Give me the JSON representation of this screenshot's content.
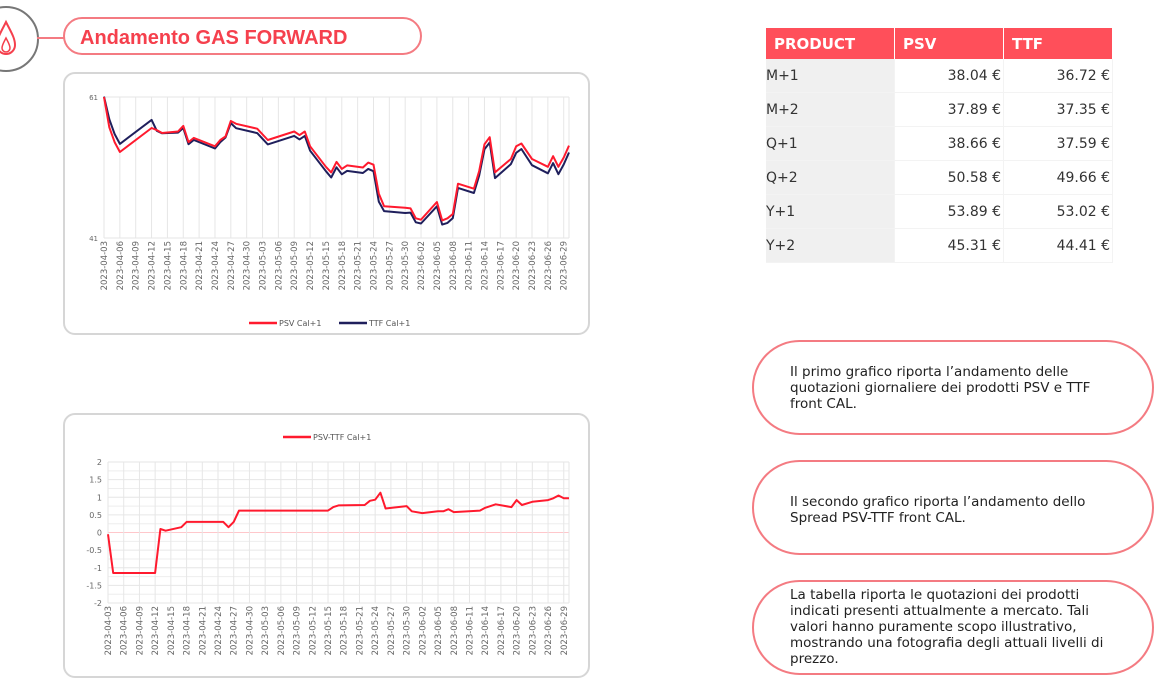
{
  "header": {
    "title": "Andamento GAS FORWARD",
    "icon": "gas-flame-icon"
  },
  "colors": {
    "accent": "#f5404d",
    "psv": "#ff1a2e",
    "ttf": "#1f1f5c",
    "table_header": "#ff4f5a"
  },
  "table": {
    "headers": [
      "PRODUCT",
      "PSV",
      "TTF"
    ],
    "rows": [
      [
        "M+1",
        "38.04 €",
        "36.72 €"
      ],
      [
        "M+2",
        "37.89 €",
        "37.35 €"
      ],
      [
        "Q+1",
        "38.66 €",
        "37.59 €"
      ],
      [
        "Q+2",
        "50.58 €",
        "49.66 €"
      ],
      [
        "Y+1",
        "53.89 €",
        "53.02 €"
      ],
      [
        "Y+2",
        "45.31 €",
        "44.41 €"
      ]
    ]
  },
  "notes": [
    "Il primo grafico riporta l’andamento delle quotazioni giornaliere dei prodotti PSV e TTF front CAL.",
    "Il secondo grafico riporta l’andamento dello Spread PSV-TTF front CAL.",
    "La tabella riporta le quotazioni dei prodotti indicati presenti attualmente a mercato. Tali valori hanno puramente scopo illustrativo, mostrando una fotografia degli attuali livelli di prezzo."
  ],
  "chart_data": [
    {
      "type": "line",
      "ylim": [
        41,
        61
      ],
      "yticks": [
        "41",
        "61"
      ],
      "xticks": [
        "2023-04-03",
        "2023-04-06",
        "2023-04-09",
        "2023-04-12",
        "2023-04-15",
        "2023-04-18",
        "2023-04-21",
        "2023-04-24",
        "2023-04-27",
        "2023-04-30",
        "2023-05-03",
        "2023-05-06",
        "2023-05-09",
        "2023-05-12",
        "2023-05-15",
        "2023-05-18",
        "2023-05-21",
        "2023-05-24",
        "2023-05-27",
        "2023-05-30",
        "2023-06-02",
        "2023-06-05",
        "2023-06-08",
        "2023-06-11",
        "2023-06-14",
        "2023-06-17",
        "2023-06-20",
        "2023-06-23",
        "2023-06-26",
        "2023-06-29"
      ],
      "grid": true,
      "legend": "bottom",
      "x": [
        "2023-04-03",
        "2023-04-04",
        "2023-04-05",
        "2023-04-06",
        "2023-04-12",
        "2023-04-13",
        "2023-04-14",
        "2023-04-17",
        "2023-04-18",
        "2023-04-19",
        "2023-04-20",
        "2023-04-24",
        "2023-04-25",
        "2023-04-26",
        "2023-04-27",
        "2023-04-28",
        "2023-05-02",
        "2023-05-04",
        "2023-05-09",
        "2023-05-10",
        "2023-05-11",
        "2023-05-12",
        "2023-05-15",
        "2023-05-16",
        "2023-05-17",
        "2023-05-18",
        "2023-05-19",
        "2023-05-22",
        "2023-05-23",
        "2023-05-24",
        "2023-05-25",
        "2023-05-26",
        "2023-05-30",
        "2023-05-31",
        "2023-06-01",
        "2023-06-02",
        "2023-06-05",
        "2023-06-06",
        "2023-06-07",
        "2023-06-08",
        "2023-06-09",
        "2023-06-12",
        "2023-06-13",
        "2023-06-14",
        "2023-06-15",
        "2023-06-16",
        "2023-06-19",
        "2023-06-20",
        "2023-06-21",
        "2023-06-23",
        "2023-06-26",
        "2023-06-27",
        "2023-06-28",
        "2023-06-29",
        "2023-06-30"
      ],
      "series": [
        {
          "name": "PSV Cal+1",
          "color": "#ff1a2e",
          "values": [
            61,
            56.7,
            54.6,
            53.2,
            56.6,
            56.3,
            55.9,
            56.1,
            56.9,
            54.6,
            55.2,
            54.0,
            54.9,
            55.4,
            57.6,
            57.2,
            56.5,
            54.9,
            56.1,
            55.6,
            56.1,
            54.0,
            51.1,
            50.3,
            51.8,
            50.8,
            51.3,
            51.0,
            51.7,
            51.4,
            47.3,
            45.5,
            45.3,
            45.2,
            43.8,
            43.6,
            46.1,
            43.5,
            43.8,
            44.4,
            48.7,
            48.0,
            50.5,
            54.3,
            55.3,
            50.3,
            52.2,
            54.0,
            54.4,
            52.2,
            51.1,
            52.6,
            51.1,
            52.4,
            54.1
          ]
        },
        {
          "name": "TTF Cal+1",
          "color": "#1f1f5c",
          "values": [
            61.05,
            57.85,
            55.75,
            54.35,
            57.75,
            56.2,
            55.85,
            55.95,
            56.6,
            54.3,
            54.9,
            53.7,
            54.6,
            55.25,
            57.3,
            56.58,
            55.88,
            54.28,
            55.48,
            54.98,
            55.48,
            53.38,
            50.48,
            49.58,
            51.03,
            50.03,
            50.52,
            50.22,
            50.8,
            50.47,
            46.17,
            44.82,
            44.55,
            44.6,
            43.22,
            43.05,
            45.5,
            42.9,
            43.14,
            43.82,
            48.1,
            47.38,
            49.88,
            53.6,
            54.55,
            49.5,
            51.48,
            53.08,
            53.62,
            51.33,
            50.18,
            51.63,
            50.05,
            51.43,
            53.13
          ]
        }
      ]
    },
    {
      "type": "line",
      "ylim": [
        -2,
        2
      ],
      "yticks": [
        "-2",
        "-1.5",
        "-1",
        "-0.5",
        "0",
        "0.5",
        "1",
        "1.5",
        "2"
      ],
      "grid": true,
      "legend": "top",
      "x": [
        "2023-04-03",
        "2023-04-04",
        "2023-04-12",
        "2023-04-13",
        "2023-04-14",
        "2023-04-17",
        "2023-04-18",
        "2023-04-25",
        "2023-04-26",
        "2023-04-27",
        "2023-04-28",
        "2023-05-15",
        "2023-05-16",
        "2023-05-17",
        "2023-05-22",
        "2023-05-23",
        "2023-05-24",
        "2023-05-25",
        "2023-05-26",
        "2023-05-30",
        "2023-05-31",
        "2023-06-02",
        "2023-06-05",
        "2023-06-06",
        "2023-06-07",
        "2023-06-08",
        "2023-06-13",
        "2023-06-14",
        "2023-06-16",
        "2023-06-19",
        "2023-06-20",
        "2023-06-21",
        "2023-06-23",
        "2023-06-26",
        "2023-06-27",
        "2023-06-28",
        "2023-06-29",
        "2023-06-30"
      ],
      "series": [
        {
          "name": "PSV-TTF Cal+1",
          "color": "#ff1a2e",
          "values": [
            -0.05,
            -1.15,
            -1.15,
            0.1,
            0.05,
            0.15,
            0.3,
            0.3,
            0.15,
            0.3,
            0.62,
            0.62,
            0.72,
            0.77,
            0.78,
            0.9,
            0.93,
            1.13,
            0.68,
            0.75,
            0.6,
            0.55,
            0.6,
            0.6,
            0.66,
            0.58,
            0.62,
            0.7,
            0.8,
            0.72,
            0.92,
            0.78,
            0.87,
            0.92,
            0.97,
            1.05,
            0.97,
            0.97
          ]
        }
      ]
    }
  ]
}
